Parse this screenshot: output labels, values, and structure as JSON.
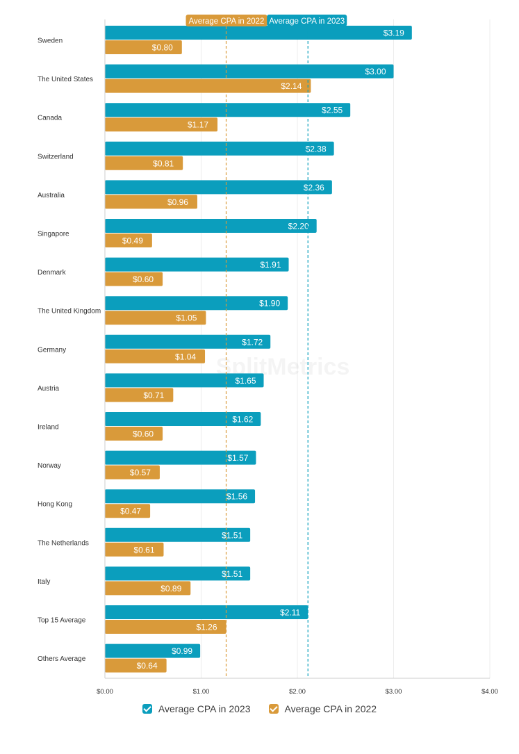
{
  "chart_data": {
    "type": "bar",
    "orientation": "horizontal",
    "categories": [
      "Sweden",
      "The United States",
      "Canada",
      "Switzerland",
      "Australia",
      "Singapore",
      "Denmark",
      "The United Kingdom",
      "Germany",
      "Austria",
      "Ireland",
      "Norway",
      "Hong Kong",
      "The Netherlands",
      "Italy",
      "Top 15 Average",
      "Others Average"
    ],
    "series": [
      {
        "name": "Average CPA in 2023",
        "color": "#0b9ebd",
        "values": [
          3.19,
          3.0,
          2.55,
          2.38,
          2.36,
          2.2,
          1.91,
          1.9,
          1.72,
          1.65,
          1.62,
          1.57,
          1.56,
          1.51,
          1.51,
          2.11,
          0.99
        ],
        "labels": [
          "$3.19",
          "$3.00",
          "$2.55",
          "$2.38",
          "$2.36",
          "$2.20",
          "$1.91",
          "$1.90",
          "$1.72",
          "$1.65",
          "$1.62",
          "$1.57",
          "$1.56",
          "$1.51",
          "$1.51",
          "$2.11",
          "$0.99"
        ]
      },
      {
        "name": "Average CPA in 2022",
        "color": "#d99a3a",
        "values": [
          0.8,
          2.14,
          1.17,
          0.81,
          0.96,
          0.49,
          0.6,
          1.05,
          1.04,
          0.71,
          0.6,
          0.57,
          0.47,
          0.61,
          0.89,
          1.26,
          0.64
        ],
        "labels": [
          "$0.80",
          "$2.14",
          "$1.17",
          "$0.81",
          "$0.96",
          "$0.49",
          "$0.60",
          "$1.05",
          "$1.04",
          "$0.71",
          "$0.60",
          "$0.57",
          "$0.47",
          "$0.61",
          "$0.89",
          "$1.26",
          "$0.64"
        ]
      }
    ],
    "xlim": [
      0,
      4
    ],
    "x_ticks": [
      0,
      1,
      2,
      3,
      4
    ],
    "x_tick_labels": [
      "$0.00",
      "$1.00",
      "$2.00",
      "$3.00",
      "$4.00"
    ],
    "reference_lines": [
      {
        "label": "Average CPA in 2022",
        "value": 1.26,
        "color": "#d99a3a"
      },
      {
        "label": "Average CPA in 2023",
        "value": 2.11,
        "color": "#0b9ebd"
      }
    ],
    "grid": true,
    "legend_position": "bottom",
    "watermark": "SplitMetrics"
  },
  "legend": {
    "item_2023": "Average CPA in 2023",
    "item_2022": "Average CPA in 2022",
    "color_2023": "#0b9ebd",
    "color_2022": "#d99a3a"
  }
}
